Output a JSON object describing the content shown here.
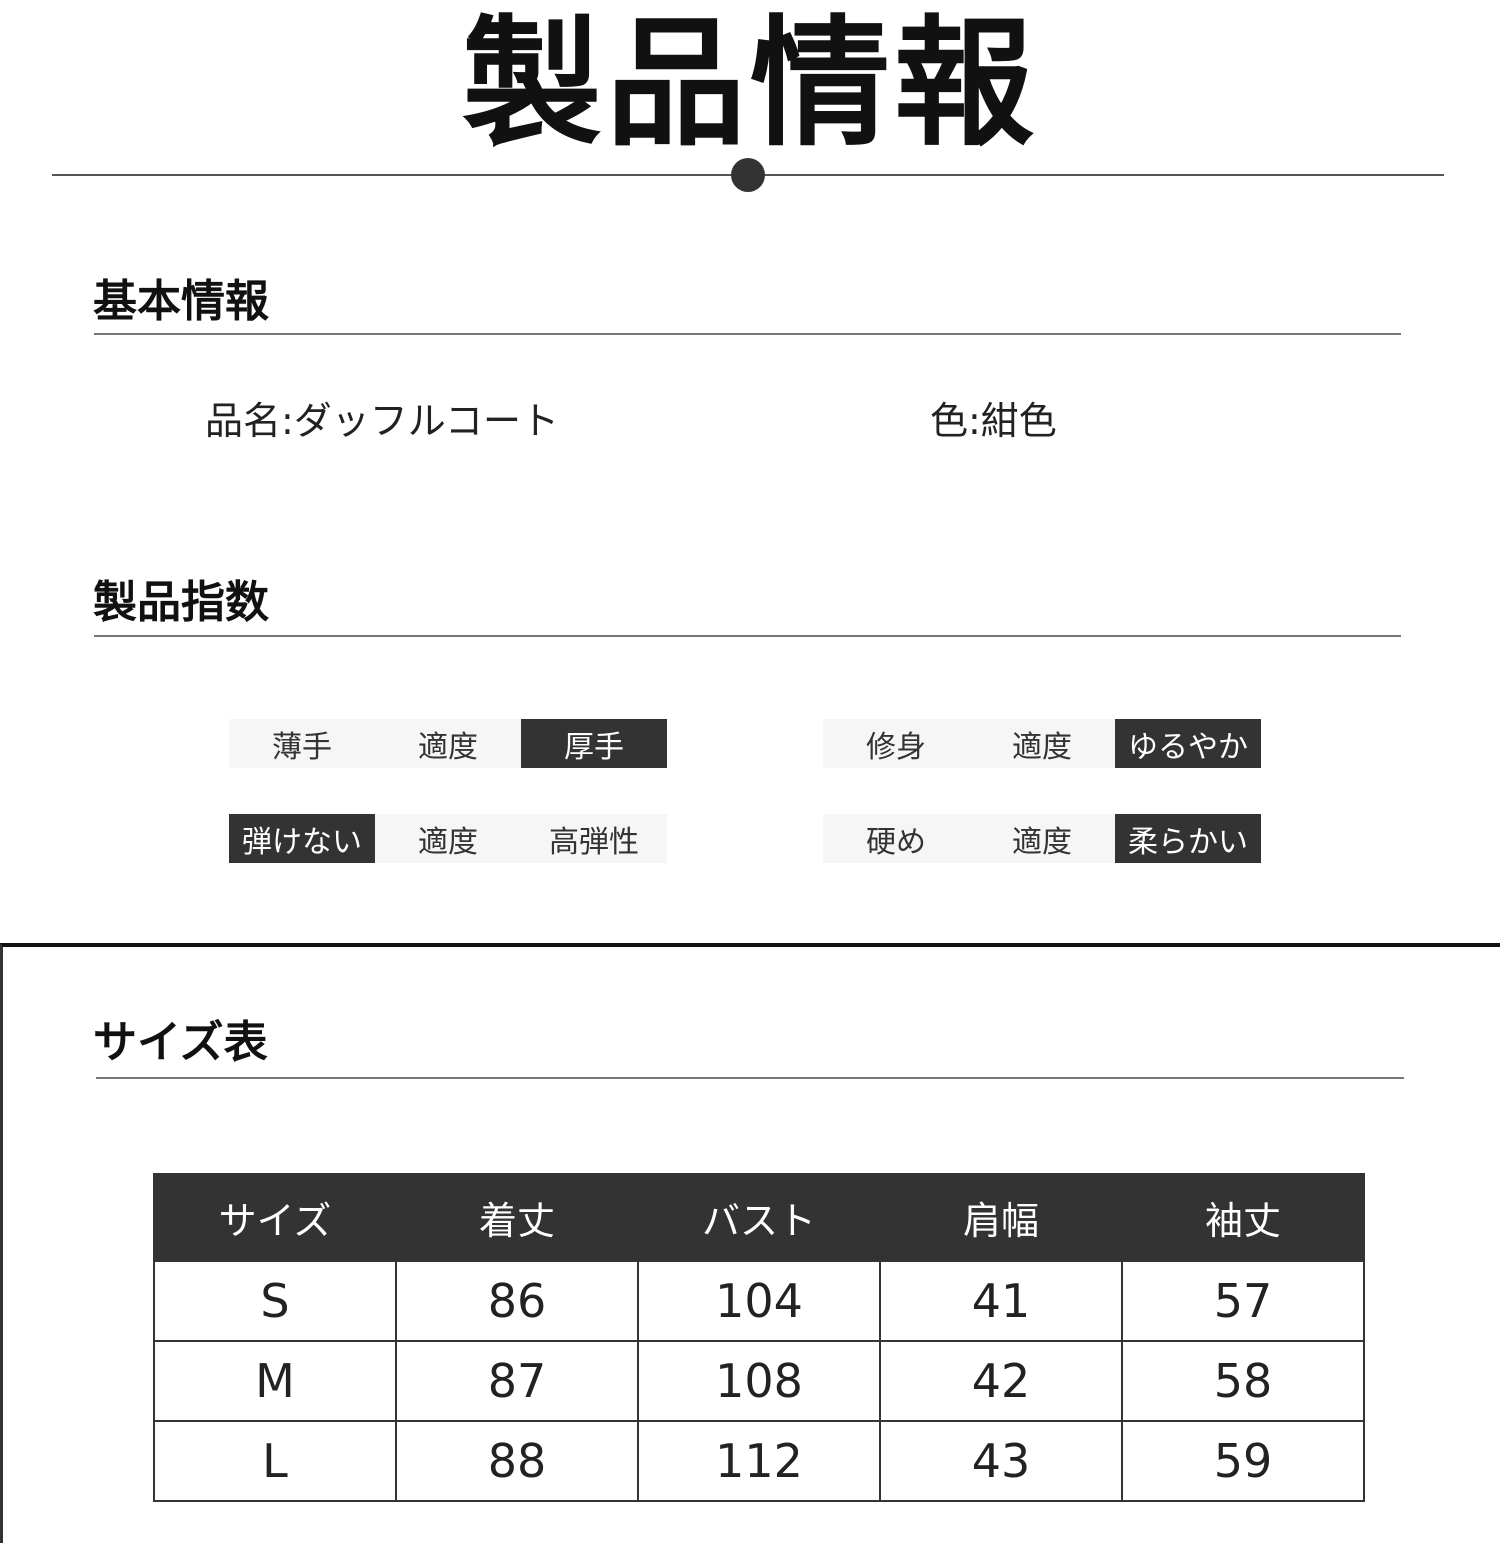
{
  "title": "製品情報",
  "basic": {
    "heading": "基本情報",
    "name": "品名:ダッフルコート",
    "color": "色:紺色"
  },
  "index": {
    "heading": "製品指数",
    "groups": [
      {
        "items": [
          "薄手",
          "適度",
          "厚手"
        ],
        "selected": 2
      },
      {
        "items": [
          "修身",
          "適度",
          "ゆるやか"
        ],
        "selected": 2
      },
      {
        "items": [
          "弾けない",
          "適度",
          "高弾性"
        ],
        "selected": 0
      },
      {
        "items": [
          "硬め",
          "適度",
          "柔らかい"
        ],
        "selected": 2
      }
    ]
  },
  "size": {
    "heading": "サイズ表",
    "headers": [
      "サイズ",
      "着丈",
      "バスト",
      "肩幅",
      "袖丈"
    ],
    "rows": [
      [
        "S",
        "86",
        "104",
        "41",
        "57"
      ],
      [
        "M",
        "87",
        "108",
        "42",
        "58"
      ],
      [
        "L",
        "88",
        "112",
        "43",
        "59"
      ]
    ]
  },
  "colors": {
    "dark": "#333333",
    "light": "#f6f6f6"
  }
}
